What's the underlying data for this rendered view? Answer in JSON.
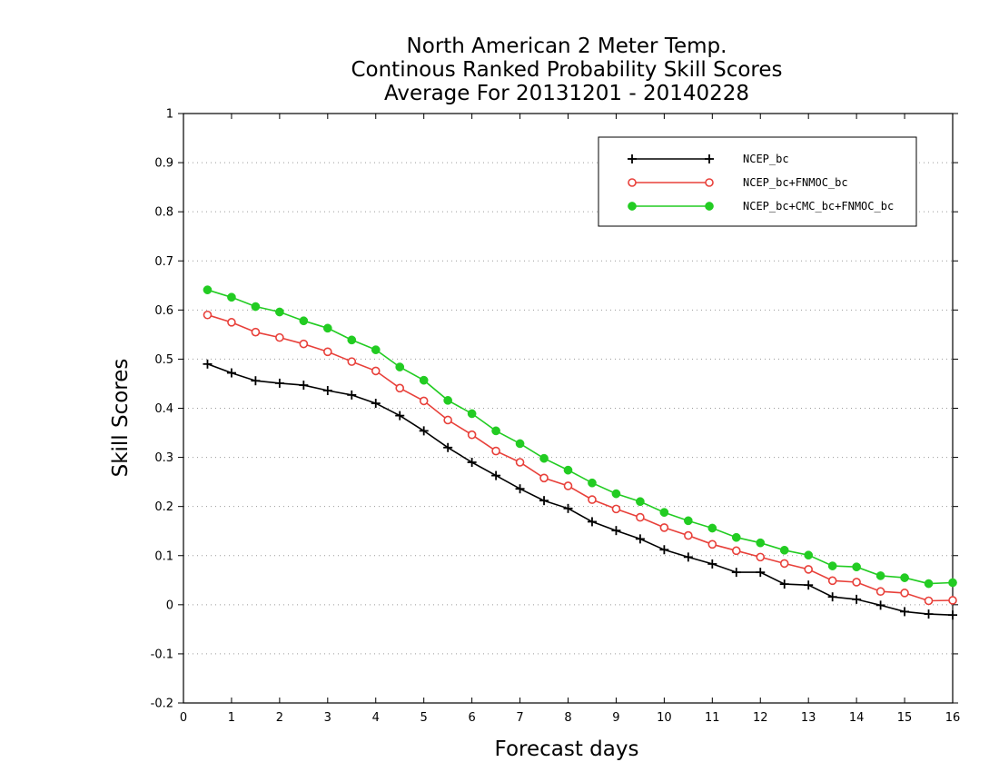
{
  "chart_data": {
    "type": "line",
    "title": [
      "North American 2 Meter Temp.",
      "Continous Ranked Probability Skill Scores",
      "Average For 20131201 - 20140228"
    ],
    "xlabel": "Forecast days",
    "ylabel": "Skill Scores",
    "xlim": [
      0,
      16
    ],
    "ylim": [
      -0.2,
      1
    ],
    "xticks": [
      0,
      1,
      2,
      3,
      4,
      5,
      6,
      7,
      8,
      9,
      10,
      11,
      12,
      13,
      14,
      15,
      16
    ],
    "yticks": [
      -0.2,
      -0.1,
      0,
      0.1,
      0.2,
      0.3,
      0.4,
      0.5,
      0.6,
      0.7,
      0.8,
      0.9,
      1
    ],
    "ytick_labels": [
      "-0.2",
      "-0.1",
      "0",
      "0.1",
      "0.2",
      "0.3",
      "0.4",
      "0.5",
      "0.6",
      "0.7",
      "0.8",
      "0.9",
      "1"
    ],
    "grid": "horizontal-dotted",
    "legend_position": "top-right",
    "x": [
      0.5,
      1,
      1.5,
      2,
      2.5,
      3,
      3.5,
      4,
      4.5,
      5,
      5.5,
      6,
      6.5,
      7,
      7.5,
      8,
      8.5,
      9,
      9.5,
      10,
      10.5,
      11,
      11.5,
      12,
      12.5,
      13,
      13.5,
      14,
      14.5,
      15,
      15.5,
      16
    ],
    "series": [
      {
        "name": "NCEP_bc",
        "color": "#000000",
        "marker": "plus",
        "values": [
          0.49,
          0.472,
          0.456,
          0.451,
          0.447,
          0.436,
          0.427,
          0.41,
          0.385,
          0.354,
          0.32,
          0.29,
          0.263,
          0.236,
          0.212,
          0.196,
          0.169,
          0.151,
          0.134,
          0.112,
          0.097,
          0.083,
          0.066,
          0.066,
          0.042,
          0.04,
          0.016,
          0.011,
          -0.001,
          -0.014,
          -0.019,
          -0.021
        ]
      },
      {
        "name": "NCEP_bc+FNMOC_bc",
        "color": "#e8403a",
        "marker": "open-circle",
        "values": [
          0.59,
          0.575,
          0.555,
          0.544,
          0.531,
          0.515,
          0.495,
          0.476,
          0.441,
          0.415,
          0.376,
          0.346,
          0.313,
          0.29,
          0.258,
          0.242,
          0.214,
          0.195,
          0.178,
          0.157,
          0.141,
          0.123,
          0.11,
          0.097,
          0.084,
          0.072,
          0.049,
          0.046,
          0.027,
          0.024,
          0.008,
          0.009
        ]
      },
      {
        "name": "NCEP_bc+CMC_bc+FNMOC_bc",
        "color": "#22cc22",
        "marker": "filled-circle",
        "values": [
          0.641,
          0.626,
          0.607,
          0.596,
          0.578,
          0.563,
          0.539,
          0.519,
          0.484,
          0.457,
          0.416,
          0.389,
          0.354,
          0.328,
          0.298,
          0.274,
          0.248,
          0.226,
          0.21,
          0.188,
          0.171,
          0.156,
          0.137,
          0.126,
          0.111,
          0.101,
          0.079,
          0.077,
          0.059,
          0.055,
          0.043,
          0.045
        ]
      }
    ]
  }
}
